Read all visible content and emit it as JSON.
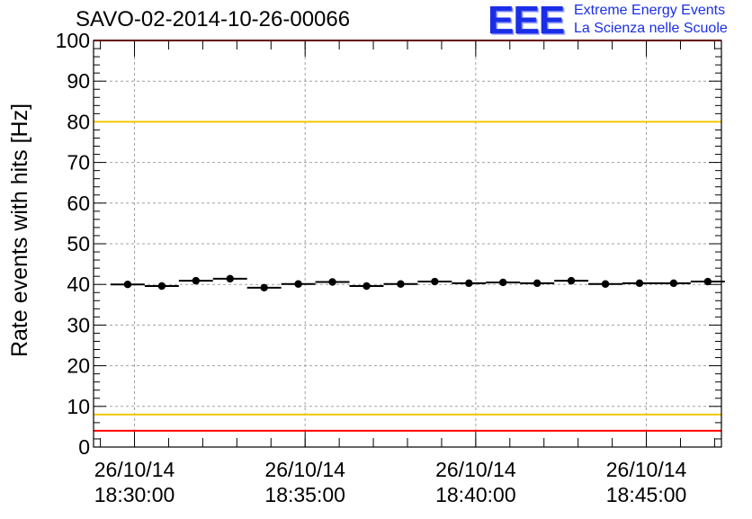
{
  "header": {
    "run_id": "SAVO-02-2014-10-26-00066",
    "logo_mark": "EEE",
    "logo_line1": "Extreme Energy Events",
    "logo_line2": "La Scienza nelle Scuole"
  },
  "colors": {
    "data": "#000000",
    "grid": "#a0a0a0",
    "outer_limit": "#ff0000",
    "inner_limit": "#f2c700"
  },
  "chart_data": {
    "type": "scatter",
    "title": "SAVO-02-2014-10-26-00066",
    "xlabel": "",
    "ylabel": "Rate events with hits [Hz]",
    "ylim": [
      0,
      100
    ],
    "y_ticks": [
      0,
      10,
      20,
      30,
      40,
      50,
      60,
      70,
      80,
      90,
      100
    ],
    "x_range_minutes": [
      -1.2,
      17.2
    ],
    "x_major_ticks": [
      {
        "t": 0,
        "date": "26/10/14",
        "time": "18:30:00"
      },
      {
        "t": 5,
        "date": "26/10/14",
        "time": "18:35:00"
      },
      {
        "t": 10,
        "date": "26/10/14",
        "time": "18:40:00"
      },
      {
        "t": 15,
        "date": "26/10/14",
        "time": "18:45:00"
      }
    ],
    "x_minor_step_minutes": 1,
    "grid": true,
    "bin_width_minutes": 1,
    "series": [
      {
        "name": "Rate events with hits",
        "x_minutes": [
          -0.2,
          0.8,
          1.8,
          2.8,
          3.8,
          4.8,
          5.8,
          6.8,
          7.8,
          8.8,
          9.8,
          10.8,
          11.8,
          12.8,
          13.8,
          14.8,
          15.8,
          16.8
        ],
        "values": [
          40.0,
          39.6,
          40.9,
          41.4,
          39.2,
          40.1,
          40.6,
          39.6,
          40.1,
          40.7,
          40.3,
          40.5,
          40.3,
          40.9,
          40.1,
          40.3,
          40.3,
          40.7
        ]
      }
    ],
    "reference_lines": [
      {
        "name": "upper-outer-limit",
        "y": 100,
        "color": "#ff0000"
      },
      {
        "name": "upper-inner-limit",
        "y": 80,
        "color": "#f2c700"
      },
      {
        "name": "lower-inner-limit",
        "y": 8,
        "color": "#f2c700"
      },
      {
        "name": "lower-outer-limit",
        "y": 4,
        "color": "#ff0000"
      }
    ]
  }
}
